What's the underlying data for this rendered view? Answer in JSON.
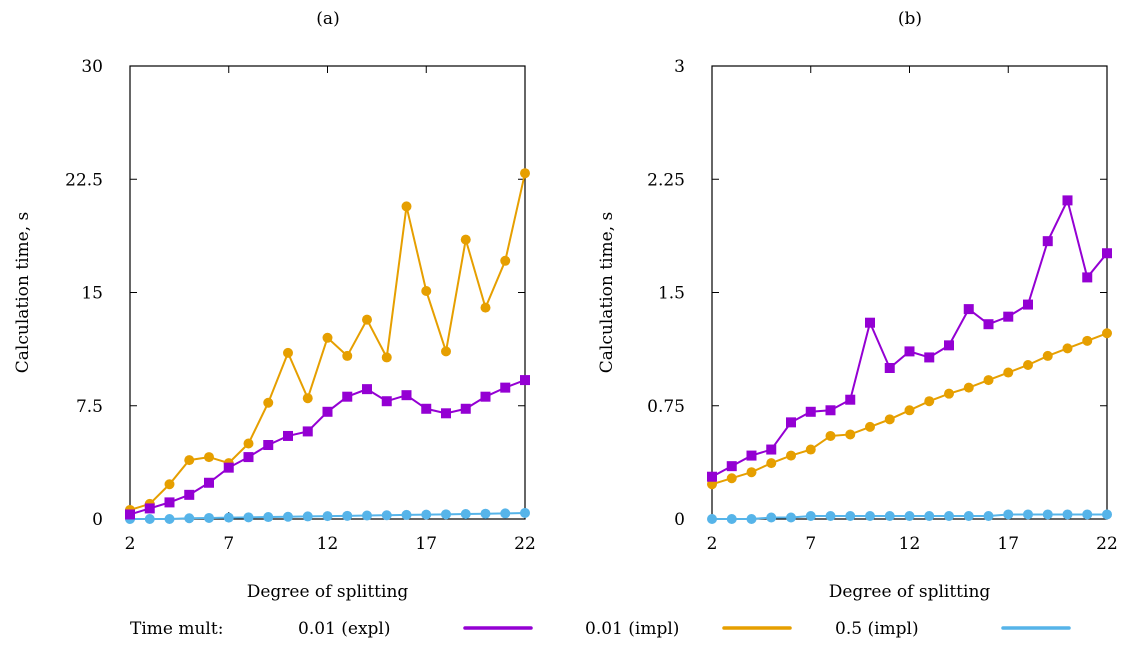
{
  "chart_data": [
    {
      "type": "line",
      "title": "(a)",
      "xlabel": "Degree of splitting",
      "ylabel": "Calculation time, s",
      "xlim": [
        2,
        22
      ],
      "ylim": [
        0,
        30
      ],
      "xticks": [
        "2",
        "7",
        "12",
        "17",
        "22"
      ],
      "yticks": [
        "0",
        "7.5",
        "15",
        "22.5",
        "30"
      ],
      "grid": false,
      "x": [
        2,
        3,
        4,
        5,
        6,
        7,
        8,
        9,
        10,
        11,
        12,
        13,
        14,
        15,
        16,
        17,
        18,
        19,
        20,
        21,
        22
      ],
      "series": [
        {
          "name": "0.01 (expl)",
          "color": "#9400d3",
          "marker": "square",
          "values": [
            0.3,
            0.7,
            1.1,
            1.6,
            2.4,
            3.4,
            4.1,
            4.9,
            5.5,
            5.8,
            7.1,
            8.1,
            8.6,
            7.8,
            8.2,
            7.3,
            7.0,
            7.3,
            8.1,
            8.7,
            9.2
          ]
        },
        {
          "name": "0.01 (impl)",
          "color": "#e69f00",
          "marker": "circle",
          "values": [
            0.6,
            1.0,
            2.3,
            3.9,
            4.1,
            3.7,
            5.0,
            7.7,
            11.0,
            8.0,
            12.0,
            10.8,
            13.2,
            10.7,
            20.7,
            15.1,
            11.1,
            18.5,
            14.0,
            17.1,
            22.9
          ]
        },
        {
          "name": "0.5 (impl)",
          "color": "#56b4e9",
          "marker": "circle",
          "values": [
            0.0,
            0.0,
            0.0,
            0.05,
            0.07,
            0.09,
            0.11,
            0.13,
            0.15,
            0.17,
            0.19,
            0.21,
            0.23,
            0.25,
            0.27,
            0.29,
            0.31,
            0.33,
            0.35,
            0.37,
            0.4
          ]
        }
      ]
    },
    {
      "type": "line",
      "title": "(b)",
      "xlabel": "Degree of splitting",
      "ylabel": "Calculation time, s",
      "xlim": [
        2,
        22
      ],
      "ylim": [
        0,
        3
      ],
      "xticks": [
        "2",
        "7",
        "12",
        "17",
        "22"
      ],
      "yticks": [
        "0",
        "0.75",
        "1.5",
        "2.25",
        "3"
      ],
      "grid": false,
      "x": [
        2,
        3,
        4,
        5,
        6,
        7,
        8,
        9,
        10,
        11,
        12,
        13,
        14,
        15,
        16,
        17,
        18,
        19,
        20,
        21,
        22
      ],
      "series": [
        {
          "name": "0.01 (expl)",
          "color": "#9400d3",
          "marker": "square",
          "values": [
            0.28,
            0.35,
            0.42,
            0.46,
            0.64,
            0.71,
            0.72,
            0.79,
            1.3,
            1.0,
            1.11,
            1.07,
            1.15,
            1.39,
            1.29,
            1.34,
            1.42,
            1.84,
            2.11,
            1.6,
            1.76
          ]
        },
        {
          "name": "0.01 (impl)",
          "color": "#e69f00",
          "marker": "circle",
          "values": [
            0.23,
            0.27,
            0.31,
            0.37,
            0.42,
            0.46,
            0.55,
            0.56,
            0.61,
            0.66,
            0.72,
            0.78,
            0.83,
            0.87,
            0.92,
            0.97,
            1.02,
            1.08,
            1.13,
            1.18,
            1.23
          ]
        },
        {
          "name": "0.5 (impl)",
          "color": "#56b4e9",
          "marker": "circle",
          "values": [
            0.0,
            0.0,
            0.0,
            0.01,
            0.01,
            0.02,
            0.02,
            0.02,
            0.02,
            0.02,
            0.02,
            0.02,
            0.02,
            0.02,
            0.02,
            0.03,
            0.03,
            0.03,
            0.03,
            0.03,
            0.03
          ]
        }
      ]
    }
  ],
  "legend": {
    "title": "Time mult:",
    "placement": "bottom",
    "entries": [
      "0.01 (expl)",
      "0.01 (impl)",
      "0.5 (impl)"
    ]
  }
}
